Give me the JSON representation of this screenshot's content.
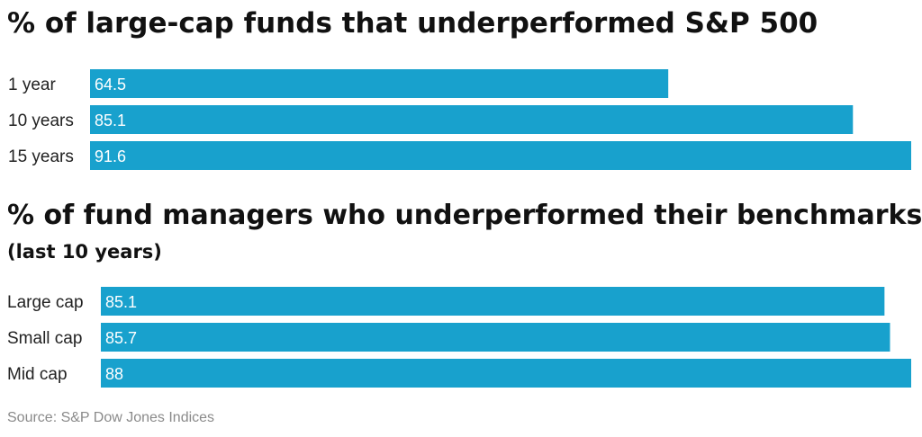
{
  "chart_data": [
    {
      "type": "bar",
      "orientation": "horizontal",
      "title": "% of large-cap funds that underperformed S&P 500",
      "subtitle": "",
      "categories": [
        "1 year",
        "10 years",
        "15 years"
      ],
      "values": [
        64.5,
        85.1,
        91.6
      ],
      "data_labels": [
        "64.5",
        "85.1",
        "91.6"
      ],
      "xlim": [
        0,
        91.6
      ],
      "grid": false,
      "bar_color": "#18a1cd"
    },
    {
      "type": "bar",
      "orientation": "horizontal",
      "title": "% of fund managers who underperformed their benchmarks",
      "subtitle": "(last 10 years)",
      "categories": [
        "Large cap",
        "Small cap",
        "Mid cap"
      ],
      "values": [
        85.1,
        85.7,
        88
      ],
      "data_labels": [
        "85.1",
        "85.7",
        "88"
      ],
      "xlim": [
        0,
        88
      ],
      "grid": false,
      "bar_color": "#18a1cd"
    }
  ],
  "source": "Source: S&P Dow Jones Indices"
}
